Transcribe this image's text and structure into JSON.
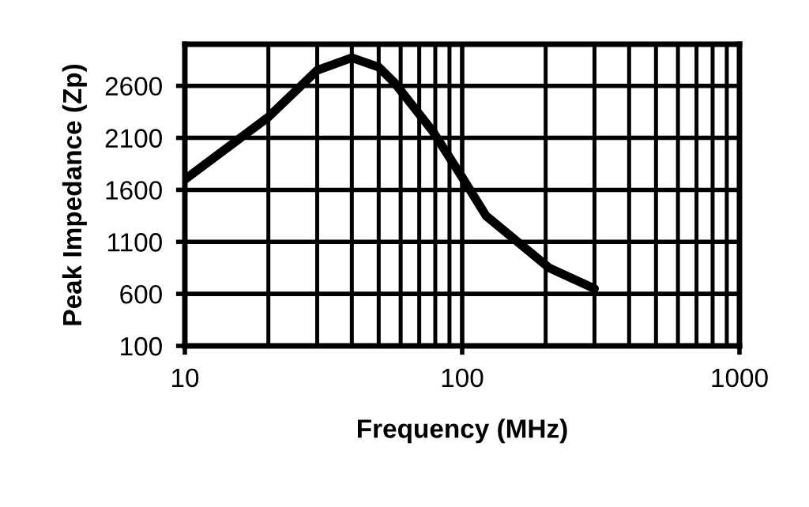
{
  "chart_data": {
    "type": "line",
    "xlabel": "Frequency (MHz)",
    "ylabel": "Peak Impedance (Zp)",
    "x": [
      10,
      20,
      30,
      40,
      50,
      57,
      78,
      100,
      122,
      206,
      300
    ],
    "series": [
      {
        "color": "#000000",
        "values": [
          1700,
          2300,
          2750,
          2870,
          2780,
          2630,
          2170,
          1720,
          1350,
          850,
          650
        ]
      }
    ],
    "log": "x",
    "xlim": [
      10,
      1000
    ],
    "xticks": [
      10,
      100,
      1000
    ],
    "ylim": [
      100,
      3000
    ],
    "yticks": [
      100,
      600,
      1100,
      1600,
      2100,
      2600
    ],
    "grid": true,
    "legend": false,
    "marker": "none",
    "line_style": "solid"
  }
}
